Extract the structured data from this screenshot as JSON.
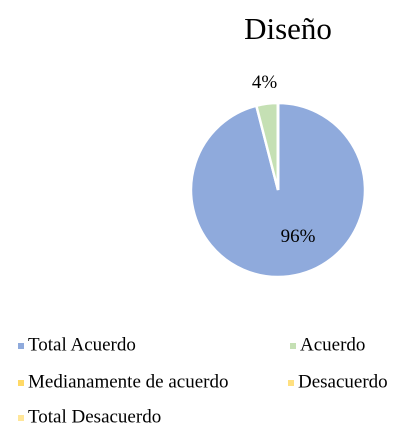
{
  "chart_data": {
    "type": "pie",
    "title": "Diseño",
    "categories": [
      "Total Acuerdo",
      "Acuerdo",
      "Medianamente de acuerdo",
      "Desacuerdo",
      "Total Desacuerdo"
    ],
    "values": [
      96,
      4,
      0,
      0,
      0
    ],
    "value_labels": [
      "96%",
      "4%",
      null,
      null,
      null
    ],
    "colors": [
      "#8faadc",
      "#c5e0b4",
      "#ffd966",
      "#ffe080",
      "#ffe699"
    ],
    "legend": "bottom"
  }
}
